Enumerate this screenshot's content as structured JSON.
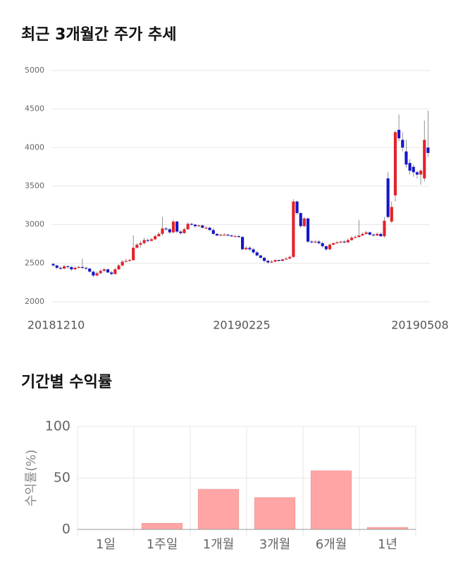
{
  "chart_data": [
    {
      "type": "candlestick",
      "title": "최근 3개월간 주가 추세",
      "categories": [
        "20181210",
        null,
        null,
        null,
        null,
        null,
        null,
        null,
        null,
        null,
        null,
        null,
        null,
        null,
        null,
        null,
        null,
        null,
        null,
        null,
        null,
        null,
        null,
        null,
        null,
        null,
        null,
        null,
        null,
        null,
        null,
        null,
        null,
        null,
        null,
        null,
        null,
        null,
        null,
        null,
        null,
        null,
        null,
        null,
        null,
        null,
        null,
        null,
        null,
        null,
        null,
        "20190225",
        null,
        null,
        null,
        null,
        null,
        null,
        null,
        null,
        null,
        null,
        null,
        null,
        null,
        null,
        null,
        null,
        null,
        null,
        null,
        null,
        null,
        null,
        null,
        null,
        null,
        null,
        null,
        null,
        null,
        null,
        null,
        null,
        null,
        null,
        null,
        null,
        null,
        null,
        null,
        null,
        null,
        null,
        null,
        null,
        null,
        null,
        null,
        null,
        "20190508",
        null,
        null,
        null
      ],
      "open": [
        2490,
        2470,
        2440,
        2430,
        2460,
        2450,
        2420,
        2440,
        2450,
        2440,
        2430,
        2390,
        2340,
        2370,
        2400,
        2420,
        2380,
        2360,
        2420,
        2470,
        2520,
        2530,
        2540,
        2700,
        2740,
        2760,
        2800,
        2790,
        2810,
        2850,
        2880,
        2950,
        2940,
        2900,
        3040,
        2910,
        2890,
        2940,
        3010,
        3000,
        2980,
        2990,
        2960,
        2960,
        2930,
        2880,
        2860,
        2870,
        2870,
        2860,
        2850,
        2850,
        2840,
        2680,
        2700,
        2680,
        2640,
        2600,
        2570,
        2530,
        2510,
        2520,
        2540,
        2530,
        2550,
        2560,
        2580,
        3300,
        3150,
        2980,
        3080,
        2780,
        2770,
        2780,
        2760,
        2720,
        2680,
        2740,
        2760,
        2770,
        2780,
        2770,
        2800,
        2830,
        2840,
        2860,
        2880,
        2900,
        2870,
        2860,
        2880,
        2850,
        3600,
        3040,
        3380,
        4230,
        4100,
        3950,
        3800,
        3750,
        3680,
        3650,
        3600,
        4000
      ],
      "high": [
        2500,
        2480,
        2460,
        2480,
        2470,
        2460,
        2460,
        2470,
        2560,
        2450,
        2440,
        2400,
        2390,
        2420,
        2440,
        2430,
        2400,
        2440,
        2490,
        2540,
        2560,
        2560,
        2860,
        2760,
        2790,
        2830,
        2820,
        2830,
        2870,
        2900,
        3100,
        2970,
        2960,
        3060,
        3050,
        2930,
        2960,
        3030,
        3020,
        3010,
        3000,
        3000,
        2980,
        2970,
        2950,
        2890,
        2880,
        2890,
        2880,
        2870,
        2870,
        2870,
        2850,
        2720,
        2720,
        2700,
        2660,
        2610,
        2580,
        2550,
        2540,
        2550,
        2550,
        2560,
        2580,
        2600,
        3330,
        3310,
        3160,
        3100,
        3090,
        2800,
        2800,
        2800,
        2780,
        2730,
        2760,
        2770,
        2790,
        2790,
        2800,
        2820,
        2850,
        2860,
        3060,
        2900,
        2920,
        2910,
        2890,
        2900,
        2900,
        3100,
        3680,
        3300,
        4220,
        4430,
        4200,
        4100,
        3850,
        3780,
        3700,
        3720,
        4350,
        4480
      ],
      "low": [
        2460,
        2420,
        2410,
        2420,
        2430,
        2400,
        2410,
        2430,
        2420,
        2410,
        2380,
        2320,
        2330,
        2360,
        2390,
        2370,
        2340,
        2350,
        2410,
        2460,
        2510,
        2520,
        2530,
        2690,
        2700,
        2740,
        2770,
        2780,
        2800,
        2840,
        2860,
        2920,
        2880,
        2890,
        2890,
        2870,
        2880,
        2930,
        2990,
        2960,
        2970,
        2950,
        2940,
        2920,
        2870,
        2850,
        2850,
        2860,
        2850,
        2840,
        2840,
        2830,
        2670,
        2670,
        2660,
        2620,
        2590,
        2560,
        2510,
        2490,
        2500,
        2510,
        2520,
        2520,
        2540,
        2550,
        2570,
        3130,
        2960,
        2970,
        2760,
        2760,
        2760,
        2740,
        2700,
        2660,
        2670,
        2730,
        2750,
        2760,
        2760,
        2760,
        2790,
        2820,
        2830,
        2850,
        2870,
        2860,
        2850,
        2850,
        2840,
        2830,
        3080,
        3020,
        3300,
        4080,
        3950,
        3740,
        3650,
        3620,
        3600,
        3520,
        3560,
        3880
      ],
      "close": [
        2470,
        2440,
        2430,
        2460,
        2450,
        2420,
        2440,
        2450,
        2440,
        2430,
        2390,
        2340,
        2370,
        2400,
        2420,
        2380,
        2360,
        2420,
        2470,
        2520,
        2530,
        2540,
        2700,
        2740,
        2760,
        2800,
        2790,
        2810,
        2850,
        2880,
        2950,
        2940,
        2900,
        3040,
        2910,
        2890,
        2940,
        3010,
        3000,
        2980,
        2990,
        2960,
        2960,
        2930,
        2880,
        2860,
        2870,
        2870,
        2860,
        2850,
        2850,
        2840,
        2680,
        2700,
        2680,
        2640,
        2600,
        2570,
        2530,
        2510,
        2520,
        2540,
        2530,
        2550,
        2560,
        2580,
        3300,
        3150,
        2980,
        3080,
        2780,
        2770,
        2780,
        2760,
        2720,
        2680,
        2740,
        2760,
        2770,
        2780,
        2770,
        2800,
        2830,
        2840,
        2860,
        2880,
        2900,
        2870,
        2860,
        2880,
        2850,
        3050,
        3100,
        3230,
        4200,
        4120,
        4000,
        3780,
        3700,
        3680,
        3650,
        3700,
        4100,
        3930
      ],
      "up_color": "#e3222b",
      "down_color": "#1616c8",
      "ylim": [
        2000,
        5000
      ],
      "yticks": [
        2000,
        2500,
        3000,
        3500,
        4000,
        4500,
        5000
      ],
      "grid": true
    },
    {
      "type": "bar",
      "title": "기간별 수익률",
      "ylabel": "수익률(%)",
      "categories": [
        "1일",
        "1주일",
        "1개월",
        "3개월",
        "6개월",
        "1년"
      ],
      "values": [
        0,
        6,
        39,
        31,
        57,
        2
      ],
      "color": "#ffa5a5",
      "ylim": [
        0,
        100
      ],
      "yticks": [
        0,
        50,
        100
      ],
      "grid": true
    }
  ]
}
